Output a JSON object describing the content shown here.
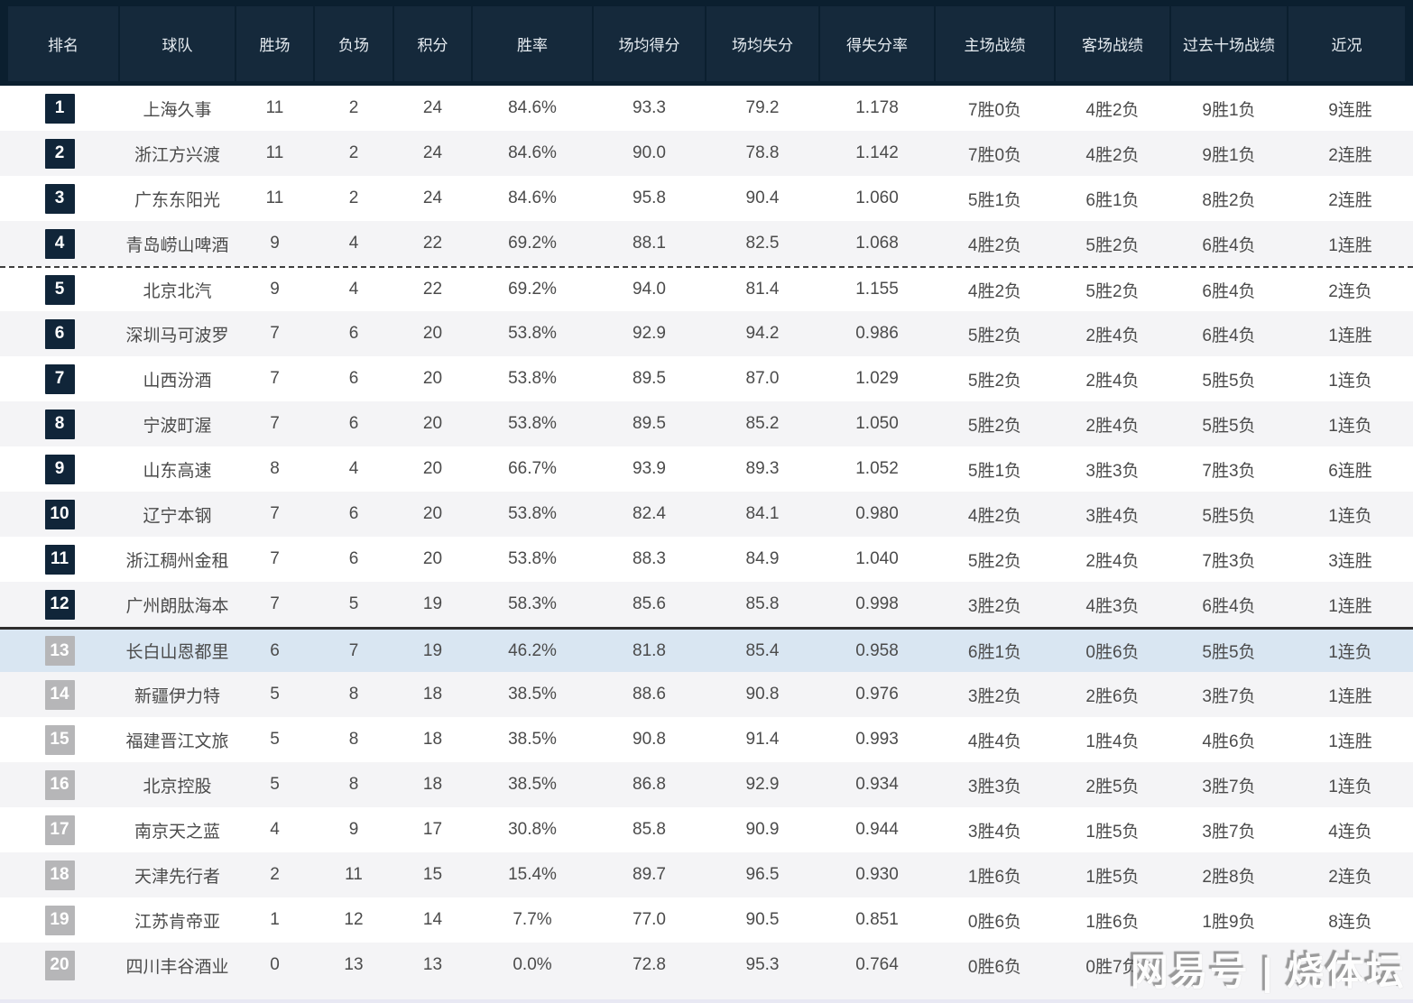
{
  "table": {
    "columns": [
      {
        "key": "rank",
        "label": "排名"
      },
      {
        "key": "team",
        "label": "球队"
      },
      {
        "key": "wins",
        "label": "胜场"
      },
      {
        "key": "losses",
        "label": "负场"
      },
      {
        "key": "points",
        "label": "积分"
      },
      {
        "key": "win_pct",
        "label": "胜率"
      },
      {
        "key": "avg_pts_for",
        "label": "场均得分"
      },
      {
        "key": "avg_pts_against",
        "label": "场均失分"
      },
      {
        "key": "pts_ratio",
        "label": "得失分率"
      },
      {
        "key": "home_record",
        "label": "主场战绩"
      },
      {
        "key": "away_record",
        "label": "客场战绩"
      },
      {
        "key": "last10_record",
        "label": "过去十场战绩"
      },
      {
        "key": "streak",
        "label": "近况"
      }
    ],
    "rows": [
      {
        "rank": "1",
        "team": "上海久事",
        "wins": "11",
        "losses": "2",
        "points": "24",
        "win_pct": "84.6%",
        "avg_pts_for": "93.3",
        "avg_pts_against": "79.2",
        "pts_ratio": "1.178",
        "home_record": "7胜0负",
        "away_record": "4胜2负",
        "last10_record": "9胜1负",
        "streak": "9连胜",
        "badge": "navy"
      },
      {
        "rank": "2",
        "team": "浙江方兴渡",
        "wins": "11",
        "losses": "2",
        "points": "24",
        "win_pct": "84.6%",
        "avg_pts_for": "90.0",
        "avg_pts_against": "78.8",
        "pts_ratio": "1.142",
        "home_record": "7胜0负",
        "away_record": "4胜2负",
        "last10_record": "9胜1负",
        "streak": "2连胜",
        "badge": "navy"
      },
      {
        "rank": "3",
        "team": "广东东阳光",
        "wins": "11",
        "losses": "2",
        "points": "24",
        "win_pct": "84.6%",
        "avg_pts_for": "95.8",
        "avg_pts_against": "90.4",
        "pts_ratio": "1.060",
        "home_record": "5胜1负",
        "away_record": "6胜1负",
        "last10_record": "8胜2负",
        "streak": "2连胜",
        "badge": "navy"
      },
      {
        "rank": "4",
        "team": "青岛崂山啤酒",
        "wins": "9",
        "losses": "4",
        "points": "22",
        "win_pct": "69.2%",
        "avg_pts_for": "88.1",
        "avg_pts_against": "82.5",
        "pts_ratio": "1.068",
        "home_record": "4胜2负",
        "away_record": "5胜2负",
        "last10_record": "6胜4负",
        "streak": "1连胜",
        "badge": "navy"
      },
      {
        "rank": "5",
        "team": "北京北汽",
        "wins": "9",
        "losses": "4",
        "points": "22",
        "win_pct": "69.2%",
        "avg_pts_for": "94.0",
        "avg_pts_against": "81.4",
        "pts_ratio": "1.155",
        "home_record": "4胜2负",
        "away_record": "5胜2负",
        "last10_record": "6胜4负",
        "streak": "2连负",
        "badge": "navy",
        "divider_top": "dashed"
      },
      {
        "rank": "6",
        "team": "深圳马可波罗",
        "wins": "7",
        "losses": "6",
        "points": "20",
        "win_pct": "53.8%",
        "avg_pts_for": "92.9",
        "avg_pts_against": "94.2",
        "pts_ratio": "0.986",
        "home_record": "5胜2负",
        "away_record": "2胜4负",
        "last10_record": "6胜4负",
        "streak": "1连胜",
        "badge": "navy"
      },
      {
        "rank": "7",
        "team": "山西汾酒",
        "wins": "7",
        "losses": "6",
        "points": "20",
        "win_pct": "53.8%",
        "avg_pts_for": "89.5",
        "avg_pts_against": "87.0",
        "pts_ratio": "1.029",
        "home_record": "5胜2负",
        "away_record": "2胜4负",
        "last10_record": "5胜5负",
        "streak": "1连负",
        "badge": "navy"
      },
      {
        "rank": "8",
        "team": "宁波町渥",
        "wins": "7",
        "losses": "6",
        "points": "20",
        "win_pct": "53.8%",
        "avg_pts_for": "89.5",
        "avg_pts_against": "85.2",
        "pts_ratio": "1.050",
        "home_record": "5胜2负",
        "away_record": "2胜4负",
        "last10_record": "5胜5负",
        "streak": "1连负",
        "badge": "navy"
      },
      {
        "rank": "9",
        "team": "山东高速",
        "wins": "8",
        "losses": "4",
        "points": "20",
        "win_pct": "66.7%",
        "avg_pts_for": "93.9",
        "avg_pts_against": "89.3",
        "pts_ratio": "1.052",
        "home_record": "5胜1负",
        "away_record": "3胜3负",
        "last10_record": "7胜3负",
        "streak": "6连胜",
        "badge": "navy"
      },
      {
        "rank": "10",
        "team": "辽宁本钢",
        "wins": "7",
        "losses": "6",
        "points": "20",
        "win_pct": "53.8%",
        "avg_pts_for": "82.4",
        "avg_pts_against": "84.1",
        "pts_ratio": "0.980",
        "home_record": "4胜2负",
        "away_record": "3胜4负",
        "last10_record": "5胜5负",
        "streak": "1连负",
        "badge": "navy"
      },
      {
        "rank": "11",
        "team": "浙江稠州金租",
        "wins": "7",
        "losses": "6",
        "points": "20",
        "win_pct": "53.8%",
        "avg_pts_for": "88.3",
        "avg_pts_against": "84.9",
        "pts_ratio": "1.040",
        "home_record": "5胜2负",
        "away_record": "2胜4负",
        "last10_record": "7胜3负",
        "streak": "3连胜",
        "badge": "navy"
      },
      {
        "rank": "12",
        "team": "广州朗肽海本",
        "wins": "7",
        "losses": "5",
        "points": "19",
        "win_pct": "58.3%",
        "avg_pts_for": "85.6",
        "avg_pts_against": "85.8",
        "pts_ratio": "0.998",
        "home_record": "3胜2负",
        "away_record": "4胜3负",
        "last10_record": "6胜4负",
        "streak": "1连胜",
        "badge": "navy"
      },
      {
        "rank": "13",
        "team": "长白山恩都里",
        "wins": "6",
        "losses": "7",
        "points": "19",
        "win_pct": "46.2%",
        "avg_pts_for": "81.8",
        "avg_pts_against": "85.4",
        "pts_ratio": "0.958",
        "home_record": "6胜1负",
        "away_record": "0胜6负",
        "last10_record": "5胜5负",
        "streak": "1连负",
        "badge": "gray",
        "divider_top": "solid",
        "highlight": true
      },
      {
        "rank": "14",
        "team": "新疆伊力特",
        "wins": "5",
        "losses": "8",
        "points": "18",
        "win_pct": "38.5%",
        "avg_pts_for": "88.6",
        "avg_pts_against": "90.8",
        "pts_ratio": "0.976",
        "home_record": "3胜2负",
        "away_record": "2胜6负",
        "last10_record": "3胜7负",
        "streak": "1连胜",
        "badge": "gray"
      },
      {
        "rank": "15",
        "team": "福建晋江文旅",
        "wins": "5",
        "losses": "8",
        "points": "18",
        "win_pct": "38.5%",
        "avg_pts_for": "90.8",
        "avg_pts_against": "91.4",
        "pts_ratio": "0.993",
        "home_record": "4胜4负",
        "away_record": "1胜4负",
        "last10_record": "4胜6负",
        "streak": "1连胜",
        "badge": "gray"
      },
      {
        "rank": "16",
        "team": "北京控股",
        "wins": "5",
        "losses": "8",
        "points": "18",
        "win_pct": "38.5%",
        "avg_pts_for": "86.8",
        "avg_pts_against": "92.9",
        "pts_ratio": "0.934",
        "home_record": "3胜3负",
        "away_record": "2胜5负",
        "last10_record": "3胜7负",
        "streak": "1连负",
        "badge": "gray"
      },
      {
        "rank": "17",
        "team": "南京天之蓝",
        "wins": "4",
        "losses": "9",
        "points": "17",
        "win_pct": "30.8%",
        "avg_pts_for": "85.8",
        "avg_pts_against": "90.9",
        "pts_ratio": "0.944",
        "home_record": "3胜4负",
        "away_record": "1胜5负",
        "last10_record": "3胜7负",
        "streak": "4连负",
        "badge": "gray"
      },
      {
        "rank": "18",
        "team": "天津先行者",
        "wins": "2",
        "losses": "11",
        "points": "15",
        "win_pct": "15.4%",
        "avg_pts_for": "89.7",
        "avg_pts_against": "96.5",
        "pts_ratio": "0.930",
        "home_record": "1胜6负",
        "away_record": "1胜5负",
        "last10_record": "2胜8负",
        "streak": "2连负",
        "badge": "gray"
      },
      {
        "rank": "19",
        "team": "江苏肯帝亚",
        "wins": "1",
        "losses": "12",
        "points": "14",
        "win_pct": "7.7%",
        "avg_pts_for": "77.0",
        "avg_pts_against": "90.5",
        "pts_ratio": "0.851",
        "home_record": "0胜6负",
        "away_record": "1胜6负",
        "last10_record": "1胜9负",
        "streak": "8连负",
        "badge": "gray"
      },
      {
        "rank": "20",
        "team": "四川丰谷酒业",
        "wins": "0",
        "losses": "13",
        "points": "13",
        "win_pct": "0.0%",
        "avg_pts_for": "72.8",
        "avg_pts_against": "95.3",
        "pts_ratio": "0.764",
        "home_record": "0胜6负",
        "away_record": "0胜7负",
        "last10_record": "",
        "streak": "",
        "badge": "gray"
      }
    ]
  },
  "watermark": {
    "text": "网易号 | 烧体坛"
  },
  "colors": {
    "header_bg": "#0B1F2F",
    "header_cell_bg": "#15293B",
    "badge_navy": "#102539",
    "badge_gray": "#B6B6B8",
    "row_alt_bg": "#F4F4F6",
    "highlight_row_bg": "#D9E6F2",
    "divider_color": "#2E2E2E"
  }
}
